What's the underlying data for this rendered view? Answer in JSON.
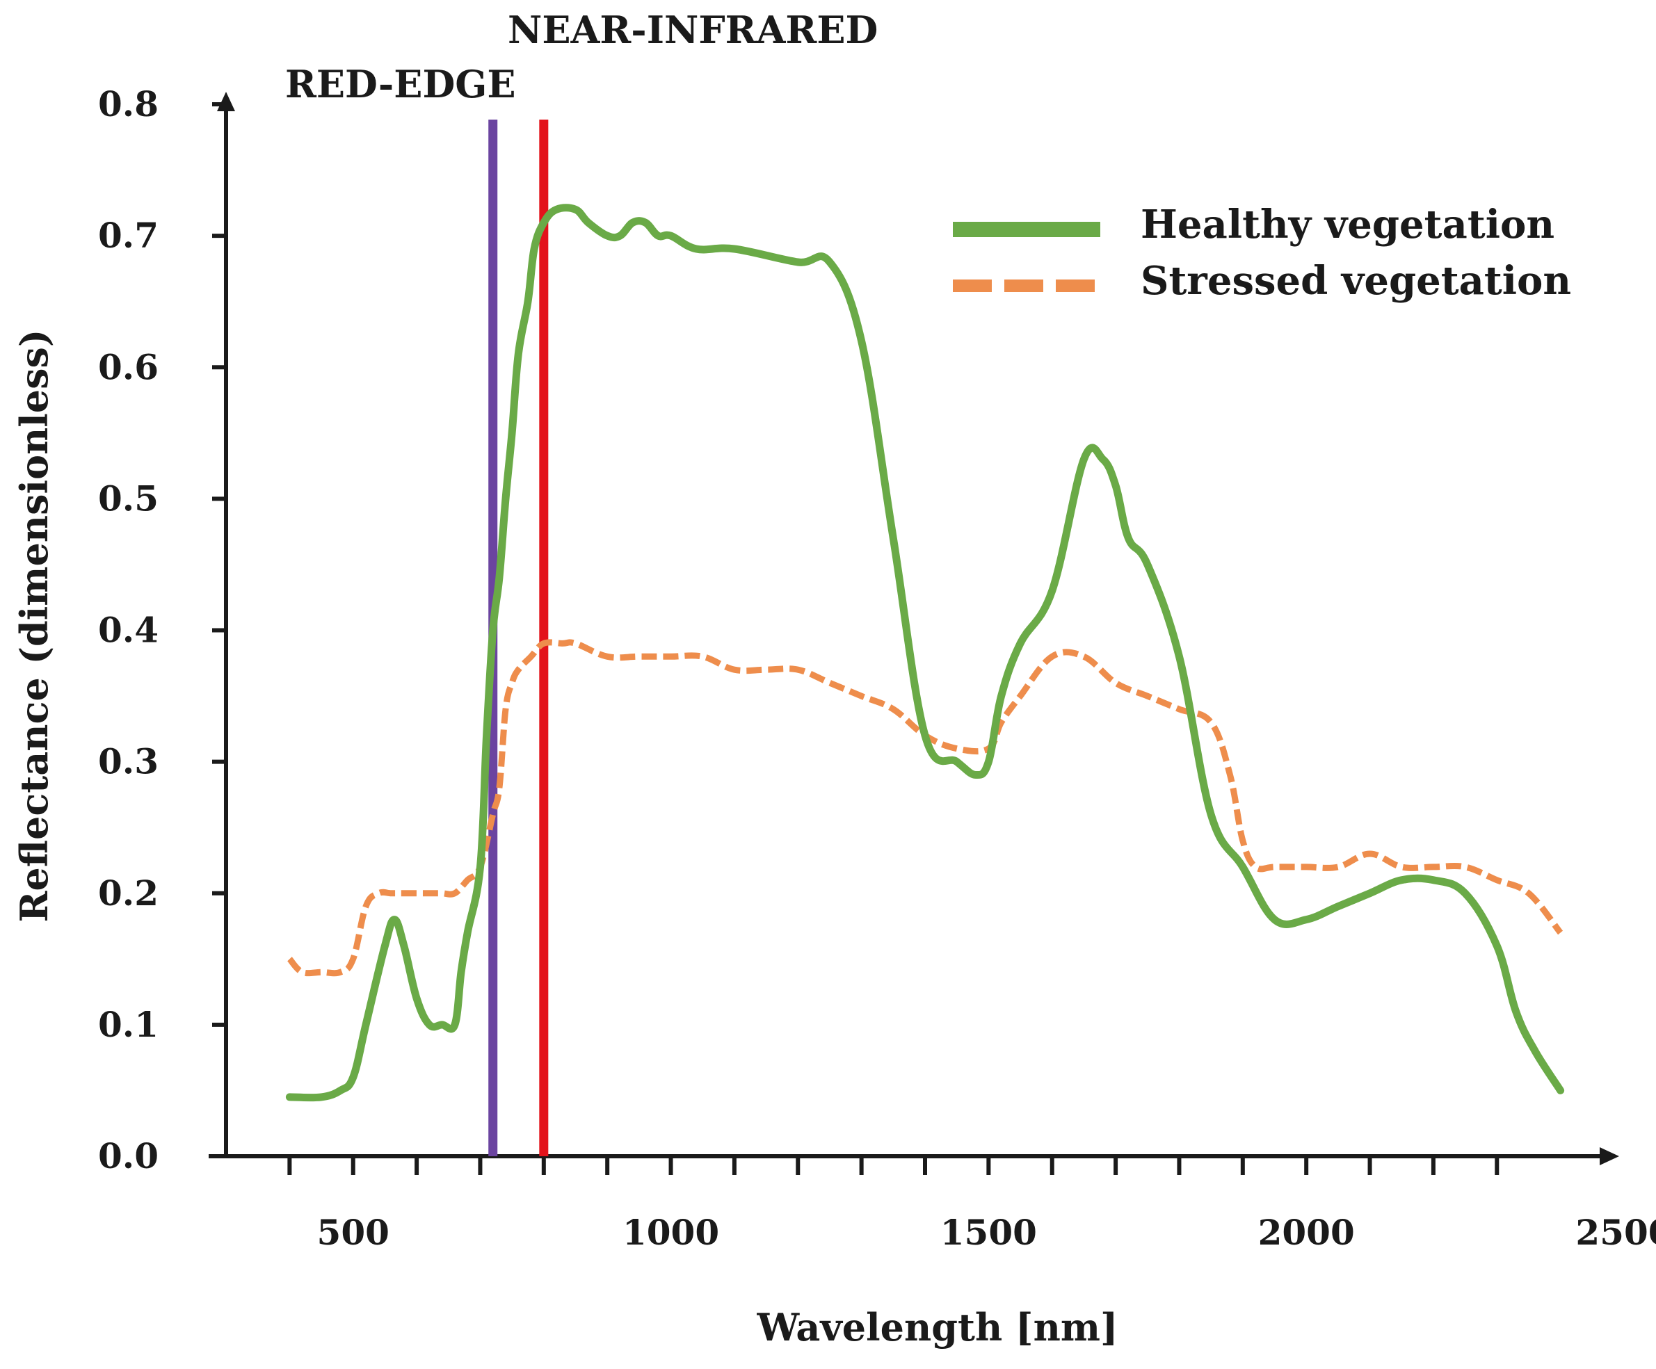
{
  "chart_data": {
    "type": "line",
    "title": "",
    "xlabel": "Wavelength [nm]",
    "ylabel": "Reflectance (dimensionless)",
    "xlim": [
      300,
      2500
    ],
    "ylim": [
      0,
      0.8
    ],
    "x_ticks": [
      500,
      1000,
      1500,
      2000,
      2500
    ],
    "x_tick_labels": [
      "500",
      "1000",
      "1500",
      "2000",
      "2500"
    ],
    "y_ticks": [
      0.0,
      0.1,
      0.2,
      0.3,
      0.4,
      0.5,
      0.6,
      0.7,
      0.8
    ],
    "y_tick_labels": [
      "0.0",
      "0.1",
      "0.2",
      "0.3",
      "0.4",
      "0.5",
      "0.6",
      "0.7",
      "0.8"
    ],
    "x_minor_ticks": [
      400,
      500,
      600,
      700,
      800,
      900,
      1000,
      1100,
      1200,
      1300,
      1400,
      1500,
      1600,
      1700,
      1800,
      1900,
      2000,
      2100,
      2200,
      2300
    ],
    "grid": false,
    "legend_position": "top-right",
    "colors": {
      "healthy": "#6aaa47",
      "stressed": "#ee8d4c",
      "red_edge": "#6b44a0",
      "nir": "#e3131b",
      "axis": "#1a1a1a"
    },
    "series": [
      {
        "name": "Healthy vegetation",
        "style": "solid",
        "x": [
          400,
          450,
          480,
          500,
          520,
          550,
          565,
          580,
          600,
          620,
          640,
          660,
          670,
          680,
          700,
          710,
          720,
          730,
          740,
          750,
          760,
          775,
          785,
          800,
          820,
          850,
          870,
          900,
          920,
          940,
          960,
          980,
          1000,
          1040,
          1100,
          1200,
          1250,
          1300,
          1350,
          1400,
          1450,
          1480,
          1500,
          1520,
          1550,
          1600,
          1650,
          1680,
          1700,
          1720,
          1750,
          1800,
          1850,
          1900,
          1950,
          2000,
          2050,
          2100,
          2150,
          2200,
          2250,
          2300,
          2330,
          2360,
          2400
        ],
        "values": [
          0.045,
          0.045,
          0.05,
          0.06,
          0.1,
          0.16,
          0.18,
          0.16,
          0.12,
          0.1,
          0.1,
          0.1,
          0.14,
          0.17,
          0.22,
          0.32,
          0.4,
          0.44,
          0.5,
          0.55,
          0.61,
          0.65,
          0.69,
          0.71,
          0.72,
          0.72,
          0.71,
          0.7,
          0.7,
          0.71,
          0.71,
          0.7,
          0.7,
          0.69,
          0.69,
          0.68,
          0.68,
          0.62,
          0.47,
          0.32,
          0.3,
          0.29,
          0.3,
          0.35,
          0.39,
          0.43,
          0.53,
          0.53,
          0.51,
          0.47,
          0.45,
          0.38,
          0.26,
          0.22,
          0.18,
          0.18,
          0.19,
          0.2,
          0.21,
          0.21,
          0.2,
          0.16,
          0.11,
          0.08,
          0.05
        ]
      },
      {
        "name": "Stressed vegetation",
        "style": "dashed",
        "x": [
          400,
          420,
          450,
          480,
          500,
          520,
          540,
          560,
          580,
          600,
          620,
          640,
          660,
          680,
          700,
          720,
          730,
          740,
          750,
          760,
          780,
          800,
          830,
          850,
          900,
          950,
          1000,
          1050,
          1100,
          1150,
          1200,
          1250,
          1300,
          1350,
          1400,
          1450,
          1500,
          1520,
          1550,
          1600,
          1650,
          1700,
          1750,
          1800,
          1850,
          1880,
          1900,
          1920,
          1950,
          2000,
          2050,
          2100,
          2150,
          2200,
          2250,
          2300,
          2350,
          2400
        ],
        "values": [
          0.15,
          0.14,
          0.14,
          0.14,
          0.15,
          0.19,
          0.2,
          0.2,
          0.2,
          0.2,
          0.2,
          0.2,
          0.2,
          0.21,
          0.22,
          0.26,
          0.28,
          0.34,
          0.36,
          0.37,
          0.38,
          0.39,
          0.39,
          0.39,
          0.38,
          0.38,
          0.38,
          0.38,
          0.37,
          0.37,
          0.37,
          0.36,
          0.35,
          0.34,
          0.32,
          0.31,
          0.31,
          0.33,
          0.35,
          0.38,
          0.38,
          0.36,
          0.35,
          0.34,
          0.33,
          0.29,
          0.24,
          0.22,
          0.22,
          0.22,
          0.22,
          0.23,
          0.22,
          0.22,
          0.22,
          0.21,
          0.2,
          0.17
        ]
      }
    ],
    "vertical_lines": [
      {
        "name": "RED-EDGE",
        "x": 720,
        "color": "#6b44a0"
      },
      {
        "name": "NEAR-INFRARED",
        "x": 800,
        "color": "#e3131b"
      }
    ],
    "annotations": [
      "RED-EDGE",
      "NEAR-INFRARED"
    ]
  }
}
